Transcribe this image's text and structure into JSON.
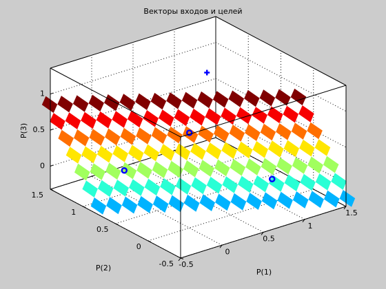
{
  "chart_data": {
    "type": "scatter3",
    "title": "Векторы входов и целей",
    "xlabel": "P(1)",
    "ylabel": "P(2)",
    "zlabel": "P(3)",
    "x": [
      0,
      0,
      1,
      1
    ],
    "y": [
      0,
      1,
      0,
      1
    ],
    "z": [
      1,
      0,
      0,
      1
    ],
    "targets": [
      0,
      0,
      0,
      1
    ],
    "color": "#0000ff",
    "xlim": [
      -0.5,
      1.5
    ],
    "ylim": [
      -0.5,
      1.5
    ],
    "zlim": [
      -0.32,
      1.36
    ],
    "xticks": [
      -0.5,
      0,
      0.5,
      1,
      1.5
    ],
    "yticks": [
      -0.5,
      0,
      0.5,
      1,
      1.5
    ],
    "zticks": [
      0,
      0.5,
      1
    ],
    "grid": true,
    "surface": {
      "colormap": "jet",
      "x": [
        -0.5,
        -0.375,
        -0.25,
        -0.125,
        0,
        0.125,
        0.25,
        0.375,
        0.5,
        0.625,
        0.75,
        0.875,
        1,
        1.125,
        1.25,
        1.375,
        1.5
      ],
      "z": [
        0.85,
        0.675,
        0.5,
        0.325,
        0.15,
        -0.025,
        -0.2
      ],
      "y": [
        [
          1.51,
          1.43,
          1.35,
          1.27,
          1.19,
          1.11,
          1.03,
          0.95,
          0.87,
          0.79,
          0.71,
          0.63,
          0.55,
          0.47,
          0.39,
          0.31,
          0.23
        ],
        [
          1.39,
          1.31,
          1.23,
          1.15,
          1.07,
          0.99,
          0.91,
          0.83,
          0.75,
          0.67,
          0.59,
          0.51,
          0.43,
          0.35,
          0.27,
          0.19,
          0.11
        ],
        [
          1.26,
          1.18,
          1.1,
          1.02,
          0.94,
          0.86,
          0.78,
          0.7,
          0.62,
          0.54,
          0.46,
          0.38,
          0.3,
          0.22,
          0.14,
          0.06,
          -0.02
        ],
        [
          1.14,
          1.06,
          0.98,
          0.9,
          0.82,
          0.74,
          0.66,
          0.58,
          0.5,
          0.42,
          0.34,
          0.26,
          0.18,
          0.1,
          0.02,
          -0.06,
          -0.14
        ],
        [
          1.01,
          0.93,
          0.85,
          0.77,
          0.69,
          0.61,
          0.53,
          0.45,
          0.37,
          0.29,
          0.21,
          0.13,
          0.05,
          -0.03,
          -0.11,
          -0.19,
          -0.27
        ],
        [
          0.89,
          0.81,
          0.73,
          0.65,
          0.57,
          0.49,
          0.41,
          0.33,
          0.25,
          0.17,
          0.09,
          0.01,
          -0.07,
          -0.15,
          -0.23,
          -0.31,
          -0.39
        ],
        [
          0.76,
          0.68,
          0.6,
          0.52,
          0.44,
          0.36,
          0.28,
          0.2,
          0.12,
          0.04,
          -0.04,
          -0.12,
          -0.2,
          -0.28,
          -0.36,
          -0.44,
          -0.52
        ]
      ]
    }
  }
}
